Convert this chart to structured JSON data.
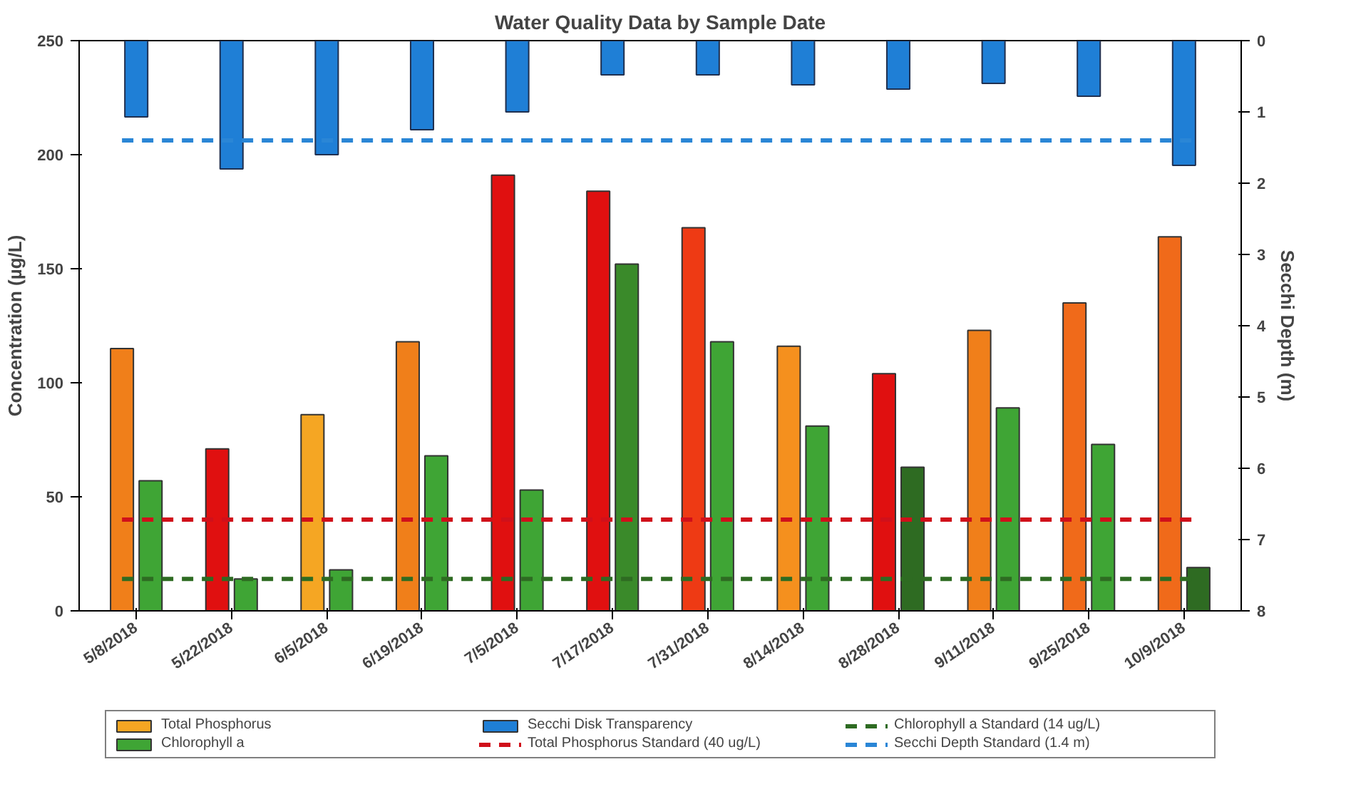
{
  "chart_data": {
    "type": "bar",
    "title": "Water Quality Data by Sample Date",
    "categories": [
      "5/8/2018",
      "5/22/2018",
      "6/5/2018",
      "6/19/2018",
      "7/5/2018",
      "7/17/2018",
      "7/31/2018",
      "8/14/2018",
      "8/28/2018",
      "9/11/2018",
      "9/25/2018",
      "10/9/2018"
    ],
    "ylabel": "Concentration (µg/L)",
    "y2label": "Secchi Depth (m)",
    "ylim": [
      0,
      250
    ],
    "yticks": [
      0,
      50,
      100,
      150,
      200,
      250
    ],
    "y2lim": [
      8,
      0
    ],
    "y2ticks": [
      0,
      1,
      2,
      3,
      4,
      5,
      6,
      7,
      8
    ],
    "series": [
      {
        "name": "Total Phosphorus",
        "color": "#f5a623",
        "colors": [
          "#f07f1a",
          "#e01010",
          "#f5a623",
          "#f07f1a",
          "#e01010",
          "#e01010",
          "#ee3a14",
          "#f5901e",
          "#e01010",
          "#f07f1a",
          "#f06a1a",
          "#f06a1a"
        ],
        "values": [
          115,
          71,
          86,
          118,
          191,
          184,
          168,
          116,
          104,
          123,
          135,
          164
        ]
      },
      {
        "name": "Chlorophyll a",
        "color": "#3fa535",
        "colors": [
          "#3fa535",
          "#3fa535",
          "#3fa535",
          "#3fa535",
          "#3fa535",
          "#3a8a2a",
          "#3fa535",
          "#3fa535",
          "#2e6b22",
          "#3fa535",
          "#3fa535",
          "#2e6b22"
        ],
        "values": [
          57,
          14,
          18,
          68,
          53,
          152,
          118,
          81,
          63,
          89,
          73,
          19
        ]
      },
      {
        "name": "Secchi Disk Transparency",
        "color": "#1f7fd6",
        "axis": "y2",
        "values": [
          1.07,
          1.8,
          1.6,
          1.25,
          1.0,
          0.48,
          0.48,
          0.62,
          0.68,
          0.6,
          0.78,
          1.75
        ]
      }
    ],
    "ref_lines": [
      {
        "axis": "y",
        "value": 40,
        "label": "Total Phosphorus Standard (40 ug/L)",
        "color": "#d0101a",
        "line_style": "dashed"
      },
      {
        "axis": "y",
        "value": 14,
        "label": "Chlorophyll a Standard (14 ug/L)",
        "color": "#2e6b22",
        "line_style": "dashed"
      },
      {
        "axis": "y2",
        "value": 1.4,
        "label": "Secchi Depth Standard (1.4 m)",
        "color": "#2a86d6",
        "line_style": "dashed"
      }
    ],
    "legend": "bottom",
    "grid": false
  }
}
